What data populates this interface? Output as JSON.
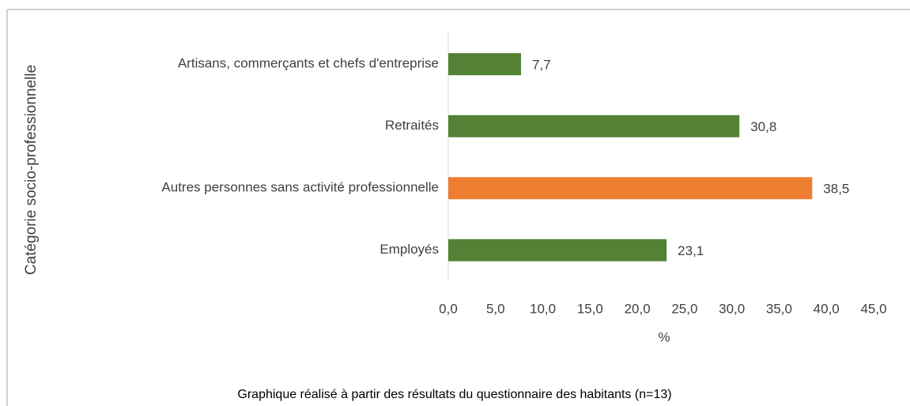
{
  "chart_data": {
    "type": "barh",
    "categories": [
      "Artisans, commerçants et chefs d'entreprise",
      "Retraités",
      "Autres personnes sans activité professionnelle",
      "Employés"
    ],
    "values": [
      7.7,
      30.8,
      38.5,
      23.1
    ],
    "value_labels": [
      "7,7",
      "30,8",
      "38,5",
      "23,1"
    ],
    "colors": [
      "#548235",
      "#548235",
      "#ed7d31",
      "#548235"
    ],
    "xlim": [
      0,
      45
    ],
    "xticks": [
      {
        "value": 0,
        "label": "0,0"
      },
      {
        "value": 5,
        "label": "5,0"
      },
      {
        "value": 10,
        "label": "10,0"
      },
      {
        "value": 15,
        "label": "15,0"
      },
      {
        "value": 20,
        "label": "20,0"
      },
      {
        "value": 25,
        "label": "25,0"
      },
      {
        "value": 30,
        "label": "30,0"
      },
      {
        "value": 35,
        "label": "35,0"
      },
      {
        "value": 40,
        "label": "40,0"
      },
      {
        "value": 45,
        "label": "45,0"
      }
    ],
    "xlabel": "%",
    "ylabel": "Catégorie socio-professionnelle",
    "caption": "Graphique réalisé à partir des résultats du questionnaire des habitants (n=13)"
  }
}
